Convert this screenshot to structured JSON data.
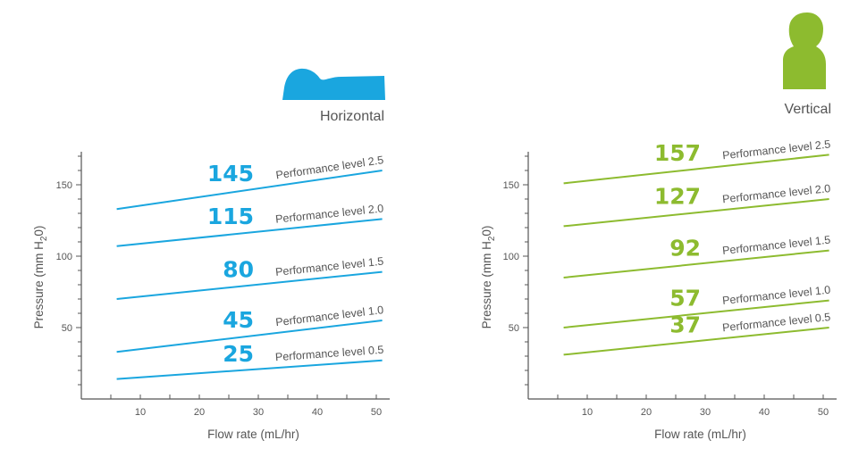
{
  "chart_data": [
    {
      "type": "line",
      "caption": "Horizontal",
      "icon": "lying-person-icon",
      "color": "#1aa6df",
      "xlabel": "Flow rate (mL/hr)",
      "ylabel_main": "Pressure (mm H",
      "ylabel_sub": "2",
      "ylabel_end": "0)",
      "xlim": [
        0,
        52
      ],
      "ylim": [
        0,
        170
      ],
      "x_ticks": [
        10,
        20,
        30,
        40,
        50
      ],
      "y_ticks": [
        50,
        100,
        150
      ],
      "series": [
        {
          "name": "Performance level 2.5",
          "value": "145",
          "x": [
            6,
            51
          ],
          "y": [
            133,
            160
          ]
        },
        {
          "name": "Performance level 2.0",
          "value": "115",
          "x": [
            6,
            51
          ],
          "y": [
            107,
            126
          ]
        },
        {
          "name": "Performance level 1.5",
          "value": "80",
          "x": [
            6,
            51
          ],
          "y": [
            70,
            89
          ]
        },
        {
          "name": "Performance level 1.0",
          "value": "45",
          "x": [
            6,
            51
          ],
          "y": [
            33,
            55
          ]
        },
        {
          "name": "Performance level 0.5",
          "value": "25",
          "x": [
            6,
            51
          ],
          "y": [
            14,
            27
          ]
        }
      ]
    },
    {
      "type": "line",
      "caption": "Vertical",
      "icon": "standing-person-icon",
      "color": "#8dbb2f",
      "xlabel": "Flow rate (mL/hr)",
      "ylabel_main": "Pressure (mm H",
      "ylabel_sub": "2",
      "ylabel_end": "0)",
      "xlim": [
        0,
        52
      ],
      "ylim": [
        0,
        170
      ],
      "x_ticks": [
        10,
        20,
        30,
        40,
        50
      ],
      "y_ticks": [
        50,
        100,
        150
      ],
      "series": [
        {
          "name": "Performance level 2.5",
          "value": "157",
          "x": [
            6,
            51
          ],
          "y": [
            151,
            171
          ]
        },
        {
          "name": "Performance level 2.0",
          "value": "127",
          "x": [
            6,
            51
          ],
          "y": [
            121,
            140
          ]
        },
        {
          "name": "Performance level 1.5",
          "value": "92",
          "x": [
            6,
            51
          ],
          "y": [
            85,
            104
          ]
        },
        {
          "name": "Performance level 1.0",
          "value": "57",
          "x": [
            6,
            51
          ],
          "y": [
            50,
            69
          ]
        },
        {
          "name": "Performance level 0.5",
          "value": "37",
          "x": [
            6,
            51
          ],
          "y": [
            31,
            50
          ]
        }
      ]
    }
  ]
}
